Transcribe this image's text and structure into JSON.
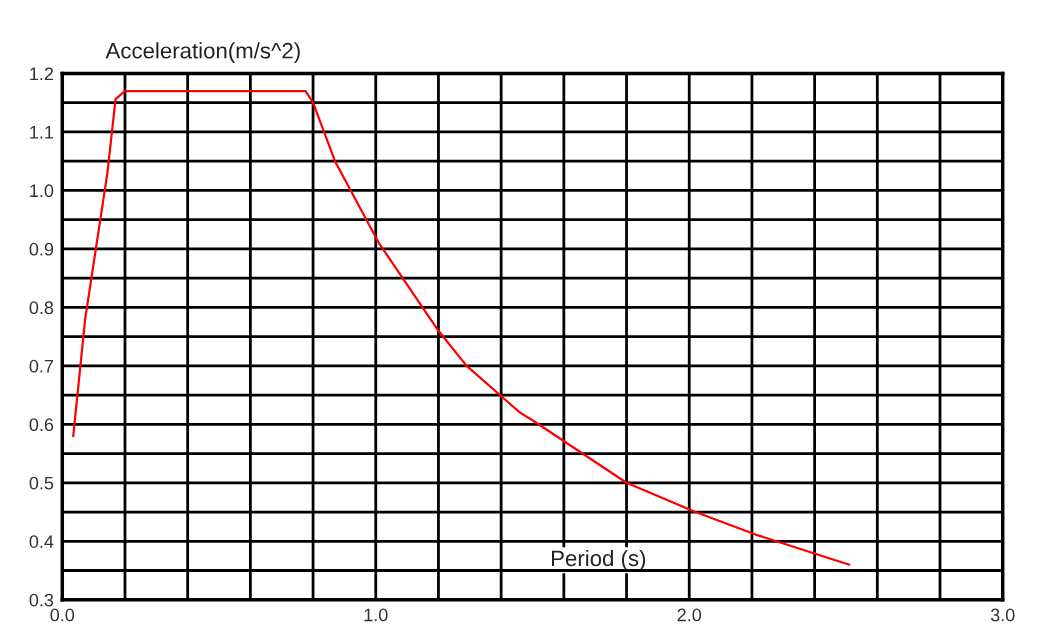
{
  "chart_data": {
    "type": "line",
    "ylabel": "Acceleration(m/s^2)",
    "xlabel": "Period (s)",
    "x": [
      0.035,
      0.073,
      0.144,
      0.17,
      0.2,
      0.776,
      0.8,
      0.87,
      1.01,
      1.2,
      1.29,
      1.46,
      1.5,
      1.8,
      2.02,
      2.22,
      2.51
    ],
    "series": [
      {
        "color": "#ff0000",
        "values": [
          0.58,
          0.78,
          1.03,
          1.156,
          1.17,
          1.17,
          1.15,
          1.05,
          0.91,
          0.76,
          0.7,
          0.62,
          0.607,
          0.5,
          0.45,
          0.41,
          0.36
        ]
      }
    ],
    "xlim": [
      0,
      3
    ],
    "ylim": [
      0.3,
      1.2
    ],
    "xticks": [
      {
        "value": 0,
        "label": "0.0"
      },
      {
        "value": 0.2,
        "label": null
      },
      {
        "value": 0.4,
        "label": null
      },
      {
        "value": 0.6,
        "label": null
      },
      {
        "value": 0.8,
        "label": null
      },
      {
        "value": 1,
        "label": "1.0"
      },
      {
        "value": 1.2,
        "label": null
      },
      {
        "value": 1.4,
        "label": null
      },
      {
        "value": 1.6,
        "label": null
      },
      {
        "value": 1.8,
        "label": null
      },
      {
        "value": 2,
        "label": "2.0"
      },
      {
        "value": 2.2,
        "label": null
      },
      {
        "value": 2.4,
        "label": null
      },
      {
        "value": 2.6,
        "label": null
      },
      {
        "value": 2.8,
        "label": null
      },
      {
        "value": 3,
        "label": "3.0"
      }
    ],
    "yticks": [
      0.3,
      {
        "value": 0.35,
        "label": null
      },
      0.4,
      {
        "value": 0.45,
        "label": null
      },
      0.5,
      {
        "value": 0.55,
        "label": null
      },
      0.6,
      {
        "value": 0.65,
        "label": null
      },
      0.7,
      {
        "value": 0.75,
        "label": null
      },
      0.8,
      {
        "value": 0.85,
        "label": null
      },
      0.9,
      {
        "value": 0.95,
        "label": null
      },
      {
        "value": 1.0,
        "label": "1.0"
      },
      {
        "value": 1.05,
        "label": null
      },
      1.1,
      {
        "value": 1.15,
        "label": null
      },
      1.2
    ],
    "grid": true,
    "line_style": "solid",
    "marker": "none"
  }
}
